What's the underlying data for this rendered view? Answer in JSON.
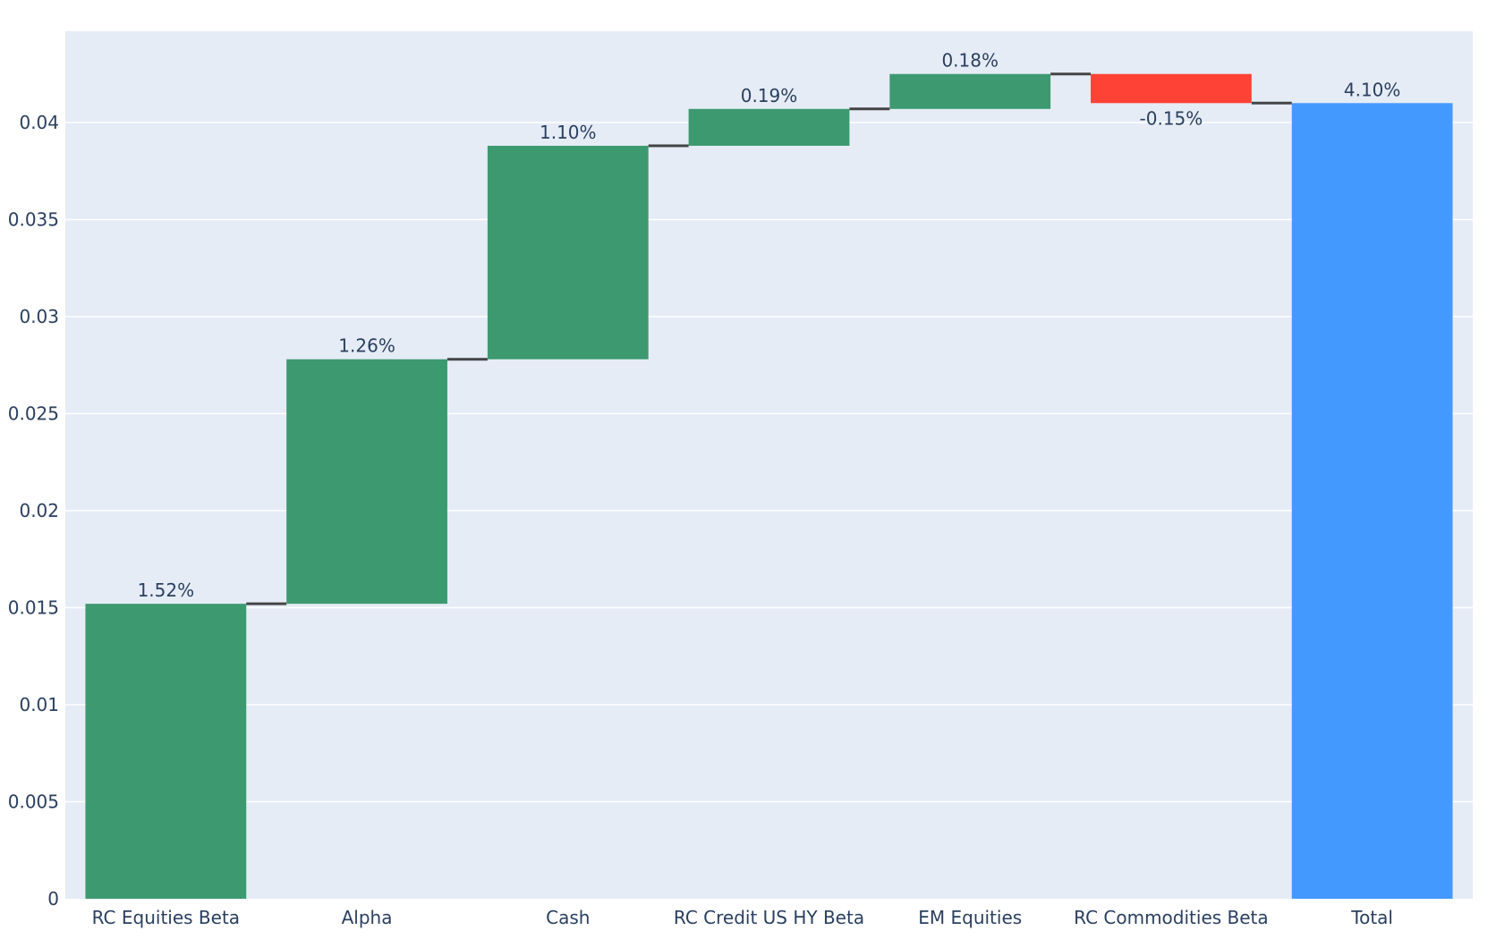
{
  "chart_data": {
    "type": "waterfall",
    "title": "",
    "xlabel": "",
    "ylabel": "",
    "categories": [
      "RC Equities Beta",
      "Alpha",
      "Cash",
      "RC Credit US HY Beta",
      "EM Equities",
      "RC Commodities Beta",
      "Total"
    ],
    "measures": [
      "relative",
      "relative",
      "relative",
      "relative",
      "relative",
      "relative",
      "total"
    ],
    "values": [
      0.0152,
      0.0126,
      0.011,
      0.0019,
      0.0018,
      -0.0015,
      0.041
    ],
    "labels": [
      "1.52%",
      "1.26%",
      "1.10%",
      "0.19%",
      "0.18%",
      "-0.15%",
      "4.10%"
    ],
    "ylim": [
      0,
      0.0447
    ],
    "yticks": [
      0,
      0.005,
      0.01,
      0.015,
      0.02,
      0.025,
      0.03,
      0.035,
      0.04
    ],
    "ytick_labels": [
      "0",
      "0.005",
      "0.01",
      "0.015",
      "0.02",
      "0.025",
      "0.03",
      "0.035",
      "0.04"
    ],
    "grid": true,
    "colors": {
      "increasing": "#3d9970",
      "decreasing": "#ff4136",
      "total": "#4499ff",
      "connector": "#444444",
      "plot_bg": "#e5ecf6",
      "grid": "#ffffff"
    }
  }
}
